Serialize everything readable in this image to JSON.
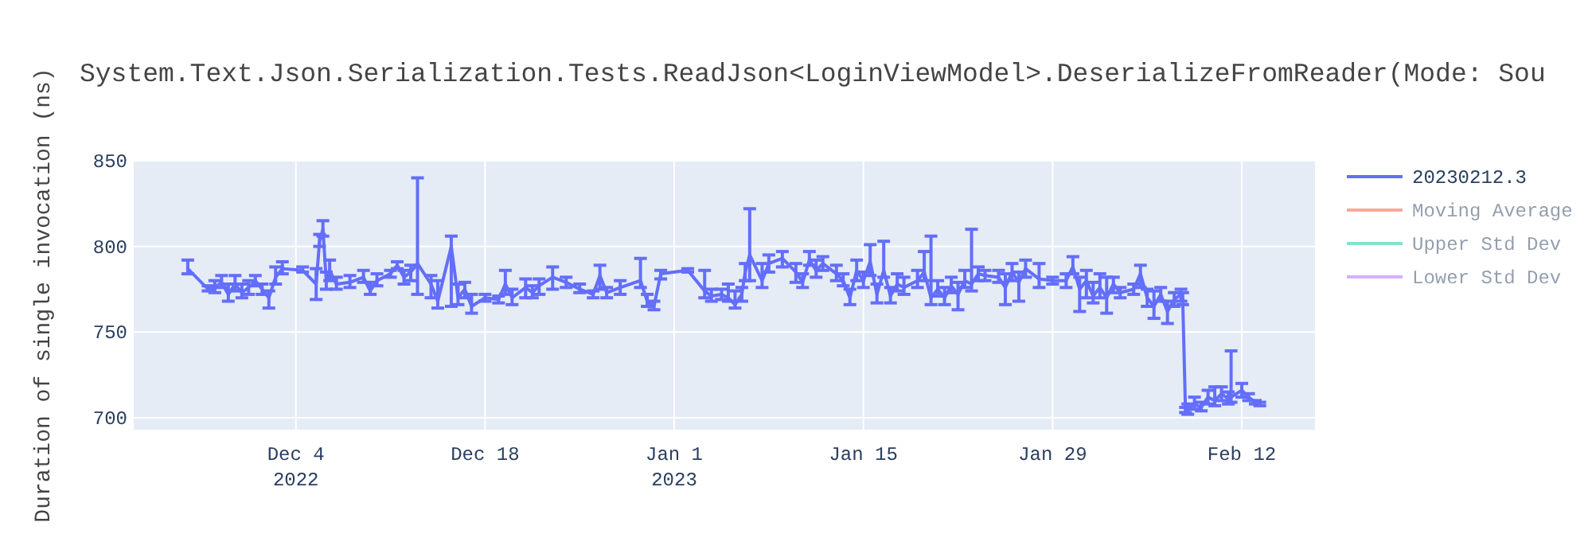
{
  "chart_data": {
    "type": "line",
    "title": "System.Text.Json.Serialization.Tests.ReadJson<LoginViewModel>.DeserializeFromReader(Mode: Sou",
    "ylabel": "Duration of single invocation (ns)",
    "xlim": [
      "2022-11-22",
      "2023-02-17T10:00"
    ],
    "xticks": [
      {
        "value": "2022-12-04",
        "label": "Dec 4\n2022"
      },
      {
        "value": "2022-12-18",
        "label": "Dec 18"
      },
      {
        "value": "2023-01-01",
        "label": "Jan 1\n2023"
      },
      {
        "value": "2023-01-15",
        "label": "Jan 15"
      },
      {
        "value": "2023-01-29",
        "label": "Jan 29"
      },
      {
        "value": "2023-02-12",
        "label": "Feb 12"
      }
    ],
    "ylim": [
      693,
      850
    ],
    "yticks": [
      700,
      750,
      800,
      850
    ],
    "grid": true,
    "legend": "top right",
    "x": [
      "2022-11-26",
      "2022-11-27T12:00",
      "2022-11-28",
      "2022-11-28T12:00",
      "2022-11-29",
      "2022-11-29T12:00",
      "2022-11-30",
      "2022-11-30T12:00",
      "2022-12-01",
      "2022-12-01T12:00",
      "2022-12-02",
      "2022-12-02T12:00",
      "2022-12-03",
      "2022-12-04T12:00",
      "2022-12-05T12:00",
      "2022-12-05T18:00",
      "2022-12-06",
      "2022-12-06T06:00",
      "2022-12-06T12:00",
      "2022-12-07",
      "2022-12-08",
      "2022-12-09",
      "2022-12-09T12:00",
      "2022-12-10",
      "2022-12-11",
      "2022-12-11T12:00",
      "2022-12-12",
      "2022-12-12T12:00",
      "2022-12-13",
      "2022-12-14",
      "2022-12-14T12:00",
      "2022-12-15T12:00",
      "2022-12-16",
      "2022-12-16T12:00",
      "2022-12-17",
      "2022-12-18",
      "2022-12-19",
      "2022-12-19T12:00",
      "2022-12-20",
      "2022-12-21",
      "2022-12-21T12:00",
      "2022-12-22",
      "2022-12-23",
      "2022-12-24",
      "2022-12-25",
      "2022-12-26",
      "2022-12-26T12:00",
      "2022-12-27",
      "2022-12-28",
      "2022-12-29T12:00",
      "2022-12-30",
      "2022-12-30T12:00",
      "2022-12-31",
      "2023-01-02",
      "2023-01-03T06:00",
      "2023-01-03T18:00",
      "2023-01-04T12:00",
      "2023-01-05",
      "2023-01-05T12:00",
      "2023-01-06",
      "2023-01-06T06:00",
      "2023-01-06T14:00",
      "2023-01-07T12:00",
      "2023-01-08",
      "2023-01-09",
      "2023-01-10",
      "2023-01-10T12:00",
      "2023-01-11",
      "2023-01-11T12:00",
      "2023-01-12",
      "2023-01-13",
      "2023-01-13T12:00",
      "2023-01-14",
      "2023-01-14T12:00",
      "2023-01-15",
      "2023-01-15T12:00",
      "2023-01-16",
      "2023-01-16T12:00",
      "2023-01-17",
      "2023-01-17T12:00",
      "2023-01-18",
      "2023-01-19",
      "2023-01-19T12:00",
      "2023-01-20",
      "2023-01-20T12:00",
      "2023-01-21",
      "2023-01-21T12:00",
      "2023-01-22",
      "2023-01-22T12:00",
      "2023-01-23",
      "2023-01-23T12:00",
      "2023-01-24",
      "2023-01-25",
      "2023-01-25T12:00",
      "2023-01-26",
      "2023-01-26T12:00",
      "2023-01-27",
      "2023-01-28",
      "2023-01-29",
      "2023-01-30",
      "2023-01-30T12:00",
      "2023-01-31",
      "2023-01-31T12:00",
      "2023-02-01",
      "2023-02-01T12:00",
      "2023-02-02",
      "2023-02-02T12:00",
      "2023-02-03",
      "2023-02-04",
      "2023-02-04T12:00",
      "2023-02-05",
      "2023-02-05T12:00",
      "2023-02-06",
      "2023-02-06T12:00",
      "2023-02-07",
      "2023-02-07T12:00",
      "2023-02-07T15:00",
      "2023-02-07T20:00",
      "2023-02-08",
      "2023-02-08T12:00",
      "2023-02-09",
      "2023-02-09T12:00",
      "2023-02-10",
      "2023-02-10T12:00",
      "2023-02-11",
      "2023-02-11T05:00",
      "2023-02-12",
      "2023-02-12T12:00",
      "2023-02-13",
      "2023-02-13T08:00"
    ],
    "series": [
      {
        "name": "20230212.3",
        "color": "#636efa",
        "values": [
          787,
          775,
          776,
          779,
          772,
          778,
          773,
          776,
          780,
          775,
          770,
          782,
          787,
          786,
          778,
          803,
          810,
          780,
          786,
          778,
          779,
          782,
          774,
          780,
          784,
          789,
          782,
          785,
          790,
          778,
          768,
          800,
          770,
          775,
          765,
          770,
          769,
          778,
          770,
          776,
          773,
          777,
          782,
          779,
          775,
          772,
          783,
          773,
          776,
          780,
          768,
          765,
          784,
          786,
          774,
          771,
          772,
          770,
          766,
          772,
          785,
          795,
          780,
          790,
          793,
          785,
          779,
          792,
          786,
          790,
          784,
          780,
          770,
          786,
          780,
          791,
          772,
          786,
          771,
          778,
          776,
          780,
          785,
          770,
          775,
          770,
          777,
          772,
          780,
          778,
          784,
          783,
          782,
          776,
          785,
          779,
          787,
          781,
          780,
          780,
          788,
          775,
          780,
          771,
          776,
          770,
          778,
          773,
          775,
          784,
          770,
          765,
          772,
          762,
          769,
          772,
          770,
          704,
          705,
          708,
          706,
          712,
          710,
          714,
          711,
          712,
          716,
          712,
          709,
          708
        ],
        "errors": [
          [
            784,
            792
          ],
          [
            774,
            777
          ],
          [
            773,
            780
          ],
          [
            776,
            783
          ],
          [
            768,
            778
          ],
          [
            774,
            783
          ],
          [
            770,
            778
          ],
          [
            772,
            780
          ],
          [
            777,
            783
          ],
          [
            772,
            778
          ],
          [
            764,
            774
          ],
          [
            778,
            788
          ],
          [
            784,
            791
          ],
          [
            785,
            788
          ],
          [
            769,
            787
          ],
          [
            800,
            807
          ],
          [
            806,
            815
          ],
          [
            775,
            785
          ],
          [
            780,
            792
          ],
          [
            775,
            782
          ],
          [
            776,
            783
          ],
          [
            779,
            786
          ],
          [
            772,
            779
          ],
          [
            777,
            784
          ],
          [
            782,
            786
          ],
          [
            787,
            791
          ],
          [
            778,
            786
          ],
          [
            780,
            789
          ],
          [
            772,
            840
          ],
          [
            770,
            783
          ],
          [
            764,
            780
          ],
          [
            765,
            806
          ],
          [
            766,
            778
          ],
          [
            770,
            779
          ],
          [
            761,
            772
          ],
          [
            768,
            772
          ],
          [
            767,
            771
          ],
          [
            772,
            786
          ],
          [
            766,
            775
          ],
          [
            770,
            781
          ],
          [
            770,
            777
          ],
          [
            772,
            781
          ],
          [
            775,
            788
          ],
          [
            776,
            782
          ],
          [
            773,
            778
          ],
          [
            770,
            774
          ],
          [
            775,
            789
          ],
          [
            770,
            776
          ],
          [
            772,
            780
          ],
          [
            776,
            793
          ],
          [
            765,
            772
          ],
          [
            763,
            768
          ],
          [
            781,
            786
          ],
          [
            785,
            787
          ],
          [
            770,
            786
          ],
          [
            768,
            775
          ],
          [
            769,
            775
          ],
          [
            768,
            778
          ],
          [
            764,
            774
          ],
          [
            768,
            776
          ],
          [
            780,
            790
          ],
          [
            780,
            822
          ],
          [
            776,
            790
          ],
          [
            785,
            795
          ],
          [
            788,
            797
          ],
          [
            779,
            790
          ],
          [
            776,
            784
          ],
          [
            789,
            797
          ],
          [
            782,
            792
          ],
          [
            786,
            794
          ],
          [
            780,
            789
          ],
          [
            777,
            784
          ],
          [
            766,
            775
          ],
          [
            780,
            792
          ],
          [
            776,
            785
          ],
          [
            783,
            801
          ],
          [
            767,
            778
          ],
          [
            782,
            803
          ],
          [
            767,
            776
          ],
          [
            774,
            784
          ],
          [
            772,
            782
          ],
          [
            776,
            786
          ],
          [
            780,
            797
          ],
          [
            766,
            806
          ],
          [
            771,
            780
          ],
          [
            766,
            776
          ],
          [
            773,
            782
          ],
          [
            763,
            779
          ],
          [
            776,
            786
          ],
          [
            774,
            810
          ],
          [
            780,
            788
          ],
          [
            780,
            786
          ],
          [
            779,
            786
          ],
          [
            766,
            784
          ],
          [
            780,
            790
          ],
          [
            768,
            785
          ],
          [
            782,
            792
          ],
          [
            776,
            790
          ],
          [
            778,
            782
          ],
          [
            776,
            784
          ],
          [
            784,
            794
          ],
          [
            762,
            782
          ],
          [
            770,
            786
          ],
          [
            767,
            779
          ],
          [
            770,
            784
          ],
          [
            761,
            782
          ],
          [
            773,
            782
          ],
          [
            770,
            776
          ],
          [
            772,
            778
          ],
          [
            776,
            789
          ],
          [
            765,
            775
          ],
          [
            758,
            774
          ],
          [
            768,
            776
          ],
          [
            755,
            768
          ],
          [
            765,
            773
          ],
          [
            768,
            775
          ],
          [
            766,
            773
          ],
          [
            703,
            706
          ],
          [
            702,
            708
          ],
          [
            705,
            712
          ],
          [
            704,
            709
          ],
          [
            708,
            716
          ],
          [
            707,
            718
          ],
          [
            710,
            718
          ],
          [
            708,
            715
          ],
          [
            709,
            739
          ],
          [
            712,
            720
          ],
          [
            710,
            714
          ],
          [
            708,
            710
          ],
          [
            707,
            709
          ]
        ]
      },
      {
        "name": "Moving Average",
        "color": "#ef553b",
        "values": [
          null,
          null,
          null,
          null,
          null,
          null,
          null,
          null,
          null,
          null,
          null,
          null,
          null,
          null,
          null,
          null,
          null,
          null,
          null,
          null,
          null,
          null,
          null,
          null,
          null,
          null,
          null,
          null,
          null,
          null,
          null,
          null,
          null,
          null,
          null,
          null,
          null,
          null,
          null,
          null,
          null,
          null,
          null,
          null,
          null,
          null,
          null,
          null,
          null,
          null,
          null,
          null,
          null,
          null,
          null,
          null,
          null,
          null,
          null,
          null,
          null,
          null,
          null,
          null,
          null,
          null,
          null,
          null,
          null,
          null,
          null,
          null,
          null,
          null,
          null,
          null,
          null,
          null,
          null,
          null,
          null,
          null,
          null,
          null,
          null,
          null,
          null,
          null,
          null,
          null,
          null,
          null,
          null,
          null,
          null,
          null,
          null,
          null,
          null,
          null,
          null,
          null,
          null,
          null,
          null,
          null,
          null,
          null,
          null,
          null,
          null,
          null,
          null,
          null,
          null,
          null,
          null,
          null,
          null,
          null,
          null,
          null,
          null,
          null,
          null,
          null,
          null,
          null,
          null,
          null
        ]
      },
      {
        "name": "Upper Std Dev",
        "color": "#00cc96",
        "values": [
          null,
          null,
          null,
          null,
          null,
          null,
          null,
          null,
          null,
          null,
          null,
          null,
          null,
          null,
          null,
          null,
          null,
          null,
          null,
          null,
          null,
          null,
          null,
          null,
          null,
          null,
          null,
          null,
          null,
          null,
          null,
          null,
          null,
          null,
          null,
          null,
          null,
          null,
          null,
          null,
          null,
          null,
          null,
          null,
          null,
          null,
          null,
          null,
          null,
          null,
          null,
          null,
          null,
          null,
          null,
          null,
          null,
          null,
          null,
          null,
          null,
          null,
          null,
          null,
          null,
          null,
          null,
          null,
          null,
          null,
          null,
          null,
          null,
          null,
          null,
          null,
          null,
          null,
          null,
          null,
          null,
          null,
          null,
          null,
          null,
          null,
          null,
          null,
          null,
          null,
          null,
          null,
          null,
          null,
          null,
          null,
          null,
          null,
          null,
          null,
          null,
          null,
          null,
          null,
          null,
          null,
          null,
          null,
          null,
          null,
          null,
          null,
          null,
          null,
          null,
          null,
          null,
          null,
          null,
          null,
          null,
          null,
          null,
          null,
          null,
          null,
          null,
          null,
          null,
          null
        ]
      },
      {
        "name": "Lower Std Dev",
        "color": "#ab63fa",
        "values": [
          null,
          null,
          null,
          null,
          null,
          null,
          null,
          null,
          null,
          null,
          null,
          null,
          null,
          null,
          null,
          null,
          null,
          null,
          null,
          null,
          null,
          null,
          null,
          null,
          null,
          null,
          null,
          null,
          null,
          null,
          null,
          null,
          null,
          null,
          null,
          null,
          null,
          null,
          null,
          null,
          null,
          null,
          null,
          null,
          null,
          null,
          null,
          null,
          null,
          null,
          null,
          null,
          null,
          null,
          null,
          null,
          null,
          null,
          null,
          null,
          null,
          null,
          null,
          null,
          null,
          null,
          null,
          null,
          null,
          null,
          null,
          null,
          null,
          null,
          null,
          null,
          null,
          null,
          null,
          null,
          null,
          null,
          null,
          null,
          null,
          null,
          null,
          null,
          null,
          null,
          null,
          null,
          null,
          null,
          null,
          null,
          null,
          null,
          null,
          null,
          null,
          null,
          null,
          null,
          null,
          null,
          null,
          null,
          null,
          null,
          null,
          null,
          null,
          null,
          null,
          null,
          null,
          null,
          null,
          null,
          null,
          null,
          null,
          null,
          null,
          null,
          null,
          null,
          null,
          null
        ]
      }
    ]
  }
}
